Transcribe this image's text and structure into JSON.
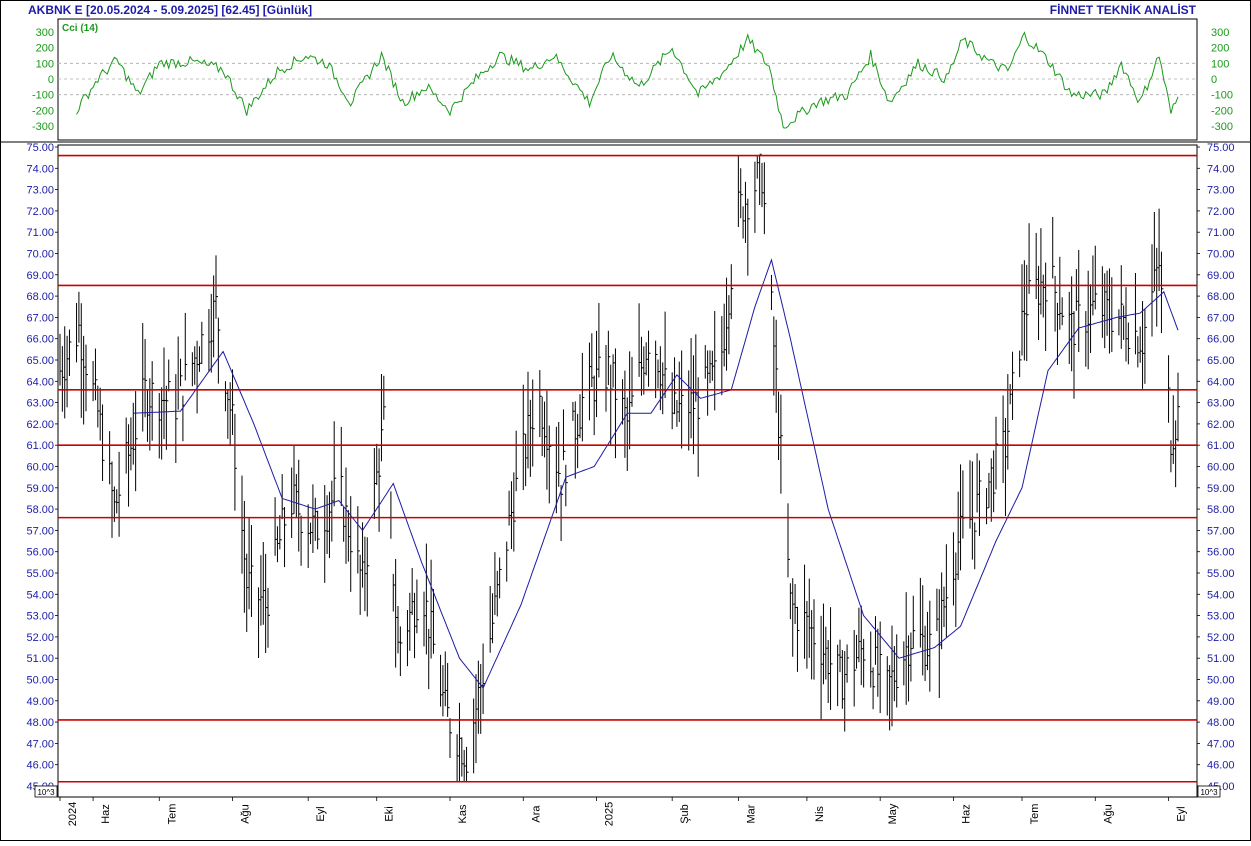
{
  "header": {
    "title": "AKBNK E  [20.05.2024 - 5.09.2025]  [62.45]  [Günlük]",
    "brand": "FİNNET TEKNİK ANALİST"
  },
  "cci_panel": {
    "label": "Cci (14)",
    "ticks": [
      "300",
      "200",
      "100",
      "0",
      "-100",
      "-200",
      "-300"
    ],
    "tick_values": [
      300,
      200,
      100,
      0,
      -100,
      -200,
      -300
    ],
    "color": "#1a9a1a"
  },
  "price_panel": {
    "ticks": [
      "75.00",
      "74.00",
      "73.00",
      "72.00",
      "71.00",
      "70.00",
      "69.00",
      "68.00",
      "67.00",
      "66.00",
      "65.00",
      "64.00",
      "63.00",
      "62.00",
      "61.00",
      "60.00",
      "59.00",
      "58.00",
      "57.00",
      "56.00",
      "55.00",
      "54.00",
      "53.00",
      "52.00",
      "51.00",
      "50.00",
      "49.00",
      "48.00",
      "47.00",
      "46.00",
      "45.00"
    ],
    "scale_note": "10^3",
    "bar_color": "#000000",
    "ma_color": "#1c1ca8",
    "hline_color": "#cc0000"
  },
  "x_axis": {
    "labels": [
      "2024",
      "Haz",
      "Tem",
      "Ağu",
      "Eyl",
      "Eki",
      "Kas",
      "Ara",
      "2025",
      "Şub",
      "Mar",
      "Nis",
      "May",
      "Haz",
      "Tem",
      "Ağu",
      "Eyl"
    ]
  },
  "chart_data": {
    "type": "ohlc",
    "title": "AKBNK E  [20.05.2024 - 5.09.2025]  [62.45]  [Günlük]",
    "period": "Günlük",
    "last": 62.45,
    "ylim": [
      45,
      75
    ],
    "cci_ylim": [
      -350,
      350
    ],
    "horizontal_levels": [
      74.6,
      68.5,
      63.6,
      61.0,
      57.6,
      48.1,
      45.2
    ],
    "price_keypoints": [
      {
        "d": "2024-05-20",
        "c": 64.5
      },
      {
        "d": "2024-05-28",
        "c": 66.5
      },
      {
        "d": "2024-06-05",
        "c": 62.5
      },
      {
        "d": "2024-06-12",
        "c": 58.0
      },
      {
        "d": "2024-06-25",
        "c": 63.5
      },
      {
        "d": "2024-07-08",
        "c": 63.0
      },
      {
        "d": "2024-07-25",
        "c": 67.5
      },
      {
        "d": "2024-08-01",
        "c": 62.0
      },
      {
        "d": "2024-08-07",
        "c": 54.5
      },
      {
        "d": "2024-08-15",
        "c": 53.5
      },
      {
        "d": "2024-08-25",
        "c": 58.5
      },
      {
        "d": "2024-09-05",
        "c": 57.0
      },
      {
        "d": "2024-09-15",
        "c": 59.0
      },
      {
        "d": "2024-09-25",
        "c": 54.5
      },
      {
        "d": "2024-10-04",
        "c": 62.0
      },
      {
        "d": "2024-10-10",
        "c": 51.5
      },
      {
        "d": "2024-10-20",
        "c": 54.5
      },
      {
        "d": "2024-10-30",
        "c": 48.5
      },
      {
        "d": "2024-11-08",
        "c": 46.5
      },
      {
        "d": "2024-11-18",
        "c": 52.0
      },
      {
        "d": "2024-11-28",
        "c": 58.5
      },
      {
        "d": "2024-12-08",
        "c": 63.5
      },
      {
        "d": "2024-12-18",
        "c": 59.5
      },
      {
        "d": "2024-12-28",
        "c": 63.5
      },
      {
        "d": "2025-01-07",
        "c": 64.5
      },
      {
        "d": "2025-01-15",
        "c": 62.0
      },
      {
        "d": "2025-01-25",
        "c": 66.5
      },
      {
        "d": "2025-02-03",
        "c": 62.5
      },
      {
        "d": "2025-02-13",
        "c": 63.0
      },
      {
        "d": "2025-02-23",
        "c": 64.5
      },
      {
        "d": "2025-03-03",
        "c": 72.0
      },
      {
        "d": "2025-03-13",
        "c": 73.8
      },
      {
        "d": "2025-03-19",
        "c": 64.0
      },
      {
        "d": "2025-03-25",
        "c": 53.5
      },
      {
        "d": "2025-04-05",
        "c": 52.0
      },
      {
        "d": "2025-04-15",
        "c": 50.0
      },
      {
        "d": "2025-04-25",
        "c": 51.5
      },
      {
        "d": "2025-05-05",
        "c": 49.5
      },
      {
        "d": "2025-05-15",
        "c": 52.0
      },
      {
        "d": "2025-05-25",
        "c": 51.5
      },
      {
        "d": "2025-06-04",
        "c": 56.5
      },
      {
        "d": "2025-06-14",
        "c": 58.5
      },
      {
        "d": "2025-06-24",
        "c": 61.0
      },
      {
        "d": "2025-07-02",
        "c": 67.5
      },
      {
        "d": "2025-07-12",
        "c": 69.0
      },
      {
        "d": "2025-07-22",
        "c": 66.5
      },
      {
        "d": "2025-08-01",
        "c": 67.5
      },
      {
        "d": "2025-08-11",
        "c": 67.0
      },
      {
        "d": "2025-08-21",
        "c": 66.0
      },
      {
        "d": "2025-08-28",
        "c": 69.5
      },
      {
        "d": "2025-09-02",
        "c": 61.5
      },
      {
        "d": "2025-09-05",
        "c": 62.45
      }
    ],
    "ma_keypoints": [
      {
        "d": "2024-06-20",
        "v": 62.5
      },
      {
        "d": "2024-07-10",
        "v": 62.6
      },
      {
        "d": "2024-07-28",
        "v": 65.4
      },
      {
        "d": "2024-08-10",
        "v": 62.0
      },
      {
        "d": "2024-08-22",
        "v": 58.5
      },
      {
        "d": "2024-09-05",
        "v": 58.0
      },
      {
        "d": "2024-09-15",
        "v": 58.4
      },
      {
        "d": "2024-09-25",
        "v": 57.0
      },
      {
        "d": "2024-10-08",
        "v": 59.2
      },
      {
        "d": "2024-10-20",
        "v": 55.5
      },
      {
        "d": "2024-11-05",
        "v": 51.0
      },
      {
        "d": "2024-11-15",
        "v": 49.6
      },
      {
        "d": "2024-12-01",
        "v": 53.5
      },
      {
        "d": "2024-12-20",
        "v": 59.5
      },
      {
        "d": "2025-01-01",
        "v": 60.0
      },
      {
        "d": "2025-01-15",
        "v": 62.5
      },
      {
        "d": "2025-01-25",
        "v": 62.5
      },
      {
        "d": "2025-02-05",
        "v": 64.3
      },
      {
        "d": "2025-02-15",
        "v": 63.2
      },
      {
        "d": "2025-02-28",
        "v": 63.6
      },
      {
        "d": "2025-03-10",
        "v": 67.5
      },
      {
        "d": "2025-03-17",
        "v": 69.7
      },
      {
        "d": "2025-03-25",
        "v": 66.0
      },
      {
        "d": "2025-04-10",
        "v": 58.0
      },
      {
        "d": "2025-04-25",
        "v": 53.0
      },
      {
        "d": "2025-05-10",
        "v": 51.0
      },
      {
        "d": "2025-05-25",
        "v": 51.5
      },
      {
        "d": "2025-06-05",
        "v": 52.5
      },
      {
        "d": "2025-06-20",
        "v": 56.5
      },
      {
        "d": "2025-07-01",
        "v": 59.0
      },
      {
        "d": "2025-07-12",
        "v": 64.5
      },
      {
        "d": "2025-07-25",
        "v": 66.5
      },
      {
        "d": "2025-08-10",
        "v": 67.0
      },
      {
        "d": "2025-08-20",
        "v": 67.2
      },
      {
        "d": "2025-08-30",
        "v": 68.2
      },
      {
        "d": "2025-09-05",
        "v": 66.4
      }
    ],
    "cci_keypoints": [
      {
        "d": "2024-05-27",
        "v": -200
      },
      {
        "d": "2024-06-05",
        "v": 0
      },
      {
        "d": "2024-06-13",
        "v": 120
      },
      {
        "d": "2024-06-22",
        "v": -100
      },
      {
        "d": "2024-07-01",
        "v": 100
      },
      {
        "d": "2024-07-15",
        "v": 110
      },
      {
        "d": "2024-07-28",
        "v": 60
      },
      {
        "d": "2024-08-07",
        "v": -200
      },
      {
        "d": "2024-08-20",
        "v": 50
      },
      {
        "d": "2024-09-01",
        "v": 150
      },
      {
        "d": "2024-09-10",
        "v": 100
      },
      {
        "d": "2024-09-20",
        "v": -150
      },
      {
        "d": "2024-10-03",
        "v": 150
      },
      {
        "d": "2024-10-12",
        "v": -150
      },
      {
        "d": "2024-10-22",
        "v": -50
      },
      {
        "d": "2024-11-01",
        "v": -200
      },
      {
        "d": "2024-11-12",
        "v": 0
      },
      {
        "d": "2024-11-22",
        "v": 150
      },
      {
        "d": "2024-12-05",
        "v": 60
      },
      {
        "d": "2024-12-15",
        "v": 150
      },
      {
        "d": "2024-12-30",
        "v": -150
      },
      {
        "d": "2025-01-08",
        "v": 150
      },
      {
        "d": "2025-01-20",
        "v": -50
      },
      {
        "d": "2025-02-03",
        "v": 200
      },
      {
        "d": "2025-02-14",
        "v": -100
      },
      {
        "d": "2025-02-25",
        "v": 50
      },
      {
        "d": "2025-03-07",
        "v": 250
      },
      {
        "d": "2025-03-16",
        "v": 80
      },
      {
        "d": "2025-03-22",
        "v": -300
      },
      {
        "d": "2025-04-05",
        "v": -150
      },
      {
        "d": "2025-04-18",
        "v": -100
      },
      {
        "d": "2025-04-28",
        "v": 150
      },
      {
        "d": "2025-05-06",
        "v": -150
      },
      {
        "d": "2025-05-18",
        "v": 100
      },
      {
        "d": "2025-05-30",
        "v": 0
      },
      {
        "d": "2025-06-06",
        "v": 250
      },
      {
        "d": "2025-06-18",
        "v": 100
      },
      {
        "d": "2025-06-25",
        "v": 50
      },
      {
        "d": "2025-07-02",
        "v": 280
      },
      {
        "d": "2025-07-12",
        "v": 120
      },
      {
        "d": "2025-07-22",
        "v": -100
      },
      {
        "d": "2025-08-05",
        "v": -100
      },
      {
        "d": "2025-08-12",
        "v": 100
      },
      {
        "d": "2025-08-20",
        "v": -150
      },
      {
        "d": "2025-08-28",
        "v": 150
      },
      {
        "d": "2025-09-02",
        "v": -220
      },
      {
        "d": "2025-09-05",
        "v": -120
      }
    ]
  }
}
